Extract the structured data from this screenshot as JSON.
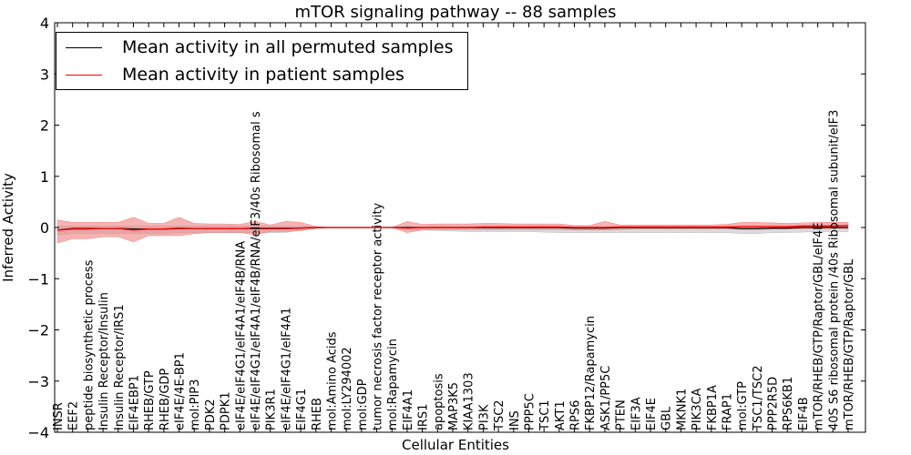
{
  "chart_data": {
    "type": "line",
    "title": "mTOR signaling pathway -- 88 samples",
    "xlabel": "Cellular Entities",
    "ylabel": "Inferred Activity",
    "ylim": [
      -4,
      4
    ],
    "yticks": [
      "−4",
      "−3",
      "−2",
      "−1",
      "0",
      "1",
      "2",
      "3",
      "4"
    ],
    "grid": false,
    "legend_position": "top-left",
    "categories": [
      "INSR",
      "EEF2",
      "peptide biosynthetic process",
      "Insulin Receptor/Insulin",
      "Insulin Receptor/IRS1",
      "EIF4EBP1",
      "RHEB/GTP",
      "RHEB/GDP",
      "eIF4E/4E-BP1",
      "mol:PIP3",
      "PDK2",
      "PDPK1",
      "eIF4E/eIF4G1/eIF4A1/eIF4B/RNA",
      "eIF4E/eIF4G1/eIF4A1/eIF4B/RNA/eIF3/40s Ribosomal s",
      "PIK3R1",
      "eIF4E/eIF4G1/eIF4A1",
      "EIF4G1",
      "RHEB",
      "mol:Amino Acids",
      "mol:LY294002",
      "mol:GDP",
      "tumor necrosis factor receptor activity",
      "mol:Rapamycin",
      "EIF4A1",
      "IRS1",
      "apoptosis",
      "MAP3K5",
      "KIAA1303",
      "PI3K",
      "TSC2",
      "INS",
      "PPP5C",
      "TSC1",
      "AKT1",
      "RPS6",
      "FKBP12/Rapamycin",
      "ASK1/PP5C",
      "PTEN",
      "EIF3A",
      "EIF4E",
      "GBL",
      "MKNK1",
      "PIK3CA",
      "FKBP1A",
      "FRAP1",
      "mol:GTP",
      "TSC1/TSC2",
      "PPP2R5D",
      "RPS6KB1",
      "EIF4B",
      "mTOR/RHEB/GTP/Raptor/GBL/eIF4E",
      "40S S6 ribosomal protein /40s Ribosomal subunit/eIF3",
      "mTOR/RHEB/GTP/Raptor/GBL"
    ],
    "series": [
      {
        "name": "Mean activity in all permuted samples",
        "color": "#000000",
        "band_color": "#bdbdbd",
        "values": [
          -0.05,
          -0.02,
          -0.02,
          -0.02,
          -0.02,
          -0.03,
          -0.03,
          -0.03,
          -0.02,
          -0.02,
          -0.02,
          -0.02,
          -0.02,
          -0.02,
          -0.02,
          -0.02,
          -0.01,
          0,
          0,
          0,
          0,
          0,
          0,
          0,
          0,
          0,
          0,
          0,
          0,
          0,
          0,
          0,
          0,
          0,
          -0.01,
          -0.01,
          -0.01,
          0,
          0,
          0,
          0,
          0,
          0,
          0,
          0,
          -0.02,
          -0.02,
          -0.01,
          -0.01,
          0,
          0,
          0,
          0
        ],
        "upper": [
          0.03,
          0.03,
          0.03,
          0.03,
          0.03,
          0.03,
          0.03,
          0.03,
          0.03,
          0.03,
          0.03,
          0.03,
          0.03,
          0.03,
          0.03,
          0.03,
          0.02,
          0.01,
          0,
          0,
          0,
          0,
          0,
          0.01,
          0.01,
          0.02,
          0.02,
          0.02,
          0.02,
          0.02,
          0.02,
          0.02,
          0.02,
          0.02,
          0.02,
          0.02,
          0.02,
          0.02,
          0.02,
          0.02,
          0.02,
          0.02,
          0.02,
          0.02,
          0.02,
          0.01,
          0.01,
          0.01,
          0.01,
          0.02,
          0.02,
          0.02,
          0.02
        ],
        "lower": [
          -0.15,
          -0.12,
          -0.12,
          -0.12,
          -0.12,
          -0.12,
          -0.12,
          -0.12,
          -0.1,
          -0.1,
          -0.1,
          -0.1,
          -0.1,
          -0.1,
          -0.1,
          -0.1,
          -0.05,
          -0.02,
          0,
          0,
          0,
          0,
          0,
          -0.04,
          -0.05,
          -0.06,
          -0.07,
          -0.08,
          -0.08,
          -0.08,
          -0.08,
          -0.08,
          -0.09,
          -0.1,
          -0.1,
          -0.1,
          -0.1,
          -0.1,
          -0.1,
          -0.1,
          -0.1,
          -0.1,
          -0.1,
          -0.1,
          -0.1,
          -0.12,
          -0.12,
          -0.1,
          -0.1,
          -0.09,
          -0.08,
          -0.08,
          -0.08
        ]
      },
      {
        "name": "Mean activity in patient samples",
        "color": "#ff0000",
        "band_color": "#f08080",
        "values": [
          -0.05,
          -0.03,
          -0.03,
          -0.02,
          -0.02,
          -0.05,
          -0.03,
          -0.03,
          -0.01,
          -0.02,
          -0.02,
          -0.02,
          -0.02,
          -0.01,
          -0.01,
          -0.01,
          -0.01,
          0,
          0,
          0,
          0,
          0,
          0,
          -0.01,
          0,
          0,
          0,
          0,
          0.01,
          0.01,
          0.01,
          0.01,
          0.01,
          0.01,
          0,
          0,
          0,
          0.01,
          0.01,
          0.01,
          0.01,
          0.01,
          0.01,
          0.01,
          0.01,
          0.02,
          0.02,
          0.02,
          0.02,
          0.03,
          0.03,
          0.03,
          0.04
        ],
        "upper": [
          0.15,
          0.1,
          0.1,
          0.1,
          0.1,
          0.2,
          0.08,
          0.08,
          0.2,
          0.08,
          0.07,
          0.07,
          0.06,
          0.12,
          0.05,
          0.12,
          0.1,
          0.02,
          0,
          0,
          0,
          0,
          0,
          0.12,
          0.06,
          0.07,
          0.07,
          0.07,
          0.08,
          0.08,
          0.07,
          0.07,
          0.07,
          0.07,
          0.04,
          0.04,
          0.12,
          0.05,
          0.05,
          0.05,
          0.05,
          0.05,
          0.05,
          0.05,
          0.06,
          0.1,
          0.1,
          0.09,
          0.08,
          0.09,
          0.1,
          0.1,
          0.1
        ],
        "lower": [
          -0.3,
          -0.22,
          -0.22,
          -0.18,
          -0.18,
          -0.28,
          -0.16,
          -0.16,
          -0.16,
          -0.12,
          -0.1,
          -0.1,
          -0.1,
          -0.14,
          -0.08,
          -0.08,
          -0.06,
          -0.02,
          0,
          0,
          0,
          0,
          0,
          -0.1,
          -0.05,
          -0.04,
          -0.04,
          -0.04,
          -0.04,
          -0.04,
          -0.04,
          -0.04,
          -0.04,
          -0.04,
          -0.05,
          -0.05,
          -0.05,
          -0.04,
          -0.03,
          -0.03,
          -0.03,
          -0.03,
          -0.03,
          -0.03,
          -0.03,
          -0.04,
          -0.04,
          -0.03,
          -0.03,
          -0.02,
          -0.02,
          -0.02,
          -0.02
        ]
      }
    ]
  }
}
